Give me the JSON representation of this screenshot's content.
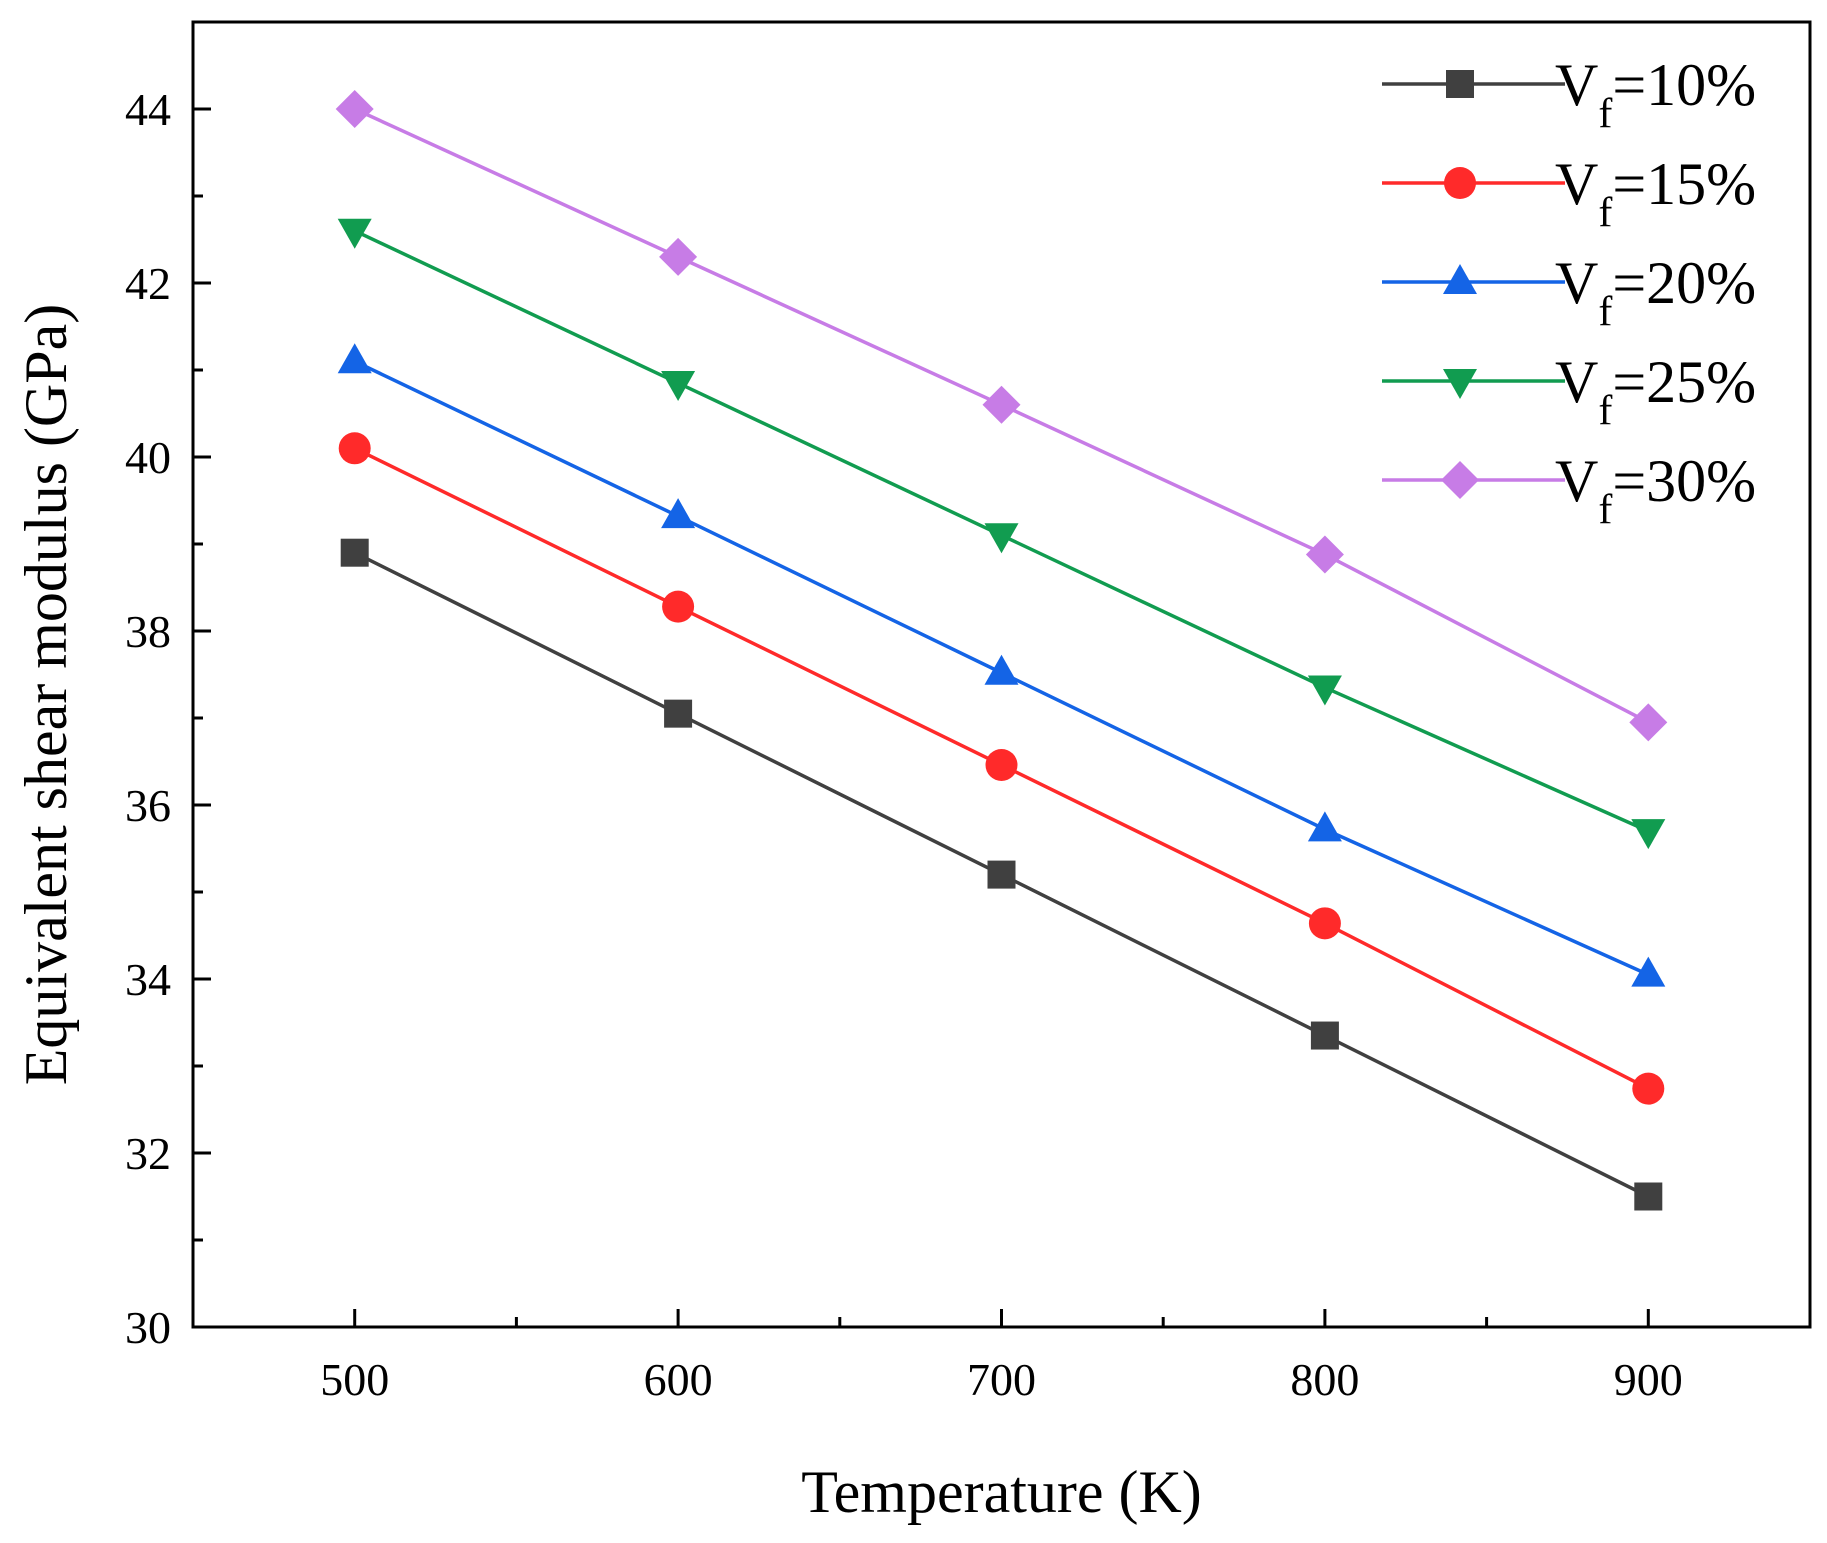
{
  "chart_data": {
    "type": "line",
    "title": "",
    "xlabel": "Temperature (K)",
    "ylabel": "Equivalent shear modulus (GPa)",
    "x": [
      500,
      600,
      700,
      800,
      900
    ],
    "xlim": [
      450,
      950
    ],
    "ylim": [
      30,
      45
    ],
    "xticks": [
      500,
      600,
      700,
      800,
      900
    ],
    "yticks": [
      30,
      32,
      34,
      36,
      38,
      40,
      42,
      44
    ],
    "grid": false,
    "legend_position": "top-right",
    "series": [
      {
        "name": "Vf=10%",
        "legend_main": "V",
        "legend_sub": "f",
        "legend_rest": "=10%",
        "color": "#404040",
        "marker": "square",
        "values": [
          38.9,
          37.05,
          35.2,
          33.35,
          31.5
        ]
      },
      {
        "name": "Vf=15%",
        "legend_main": "V",
        "legend_sub": "f",
        "legend_rest": "=15%",
        "color": "#ff2a2a",
        "marker": "circle",
        "values": [
          40.1,
          38.28,
          36.46,
          34.64,
          32.74
        ]
      },
      {
        "name": "Vf=20%",
        "legend_main": "V",
        "legend_sub": "f",
        "legend_rest": "=20%",
        "color": "#1464e6",
        "marker": "triangle-up",
        "values": [
          41.1,
          39.32,
          37.52,
          35.72,
          34.05
        ]
      },
      {
        "name": "Vf=25%",
        "legend_main": "V",
        "legend_sub": "f",
        "legend_rest": "=25%",
        "color": "#119c50",
        "marker": "triangle-down",
        "values": [
          42.6,
          40.85,
          39.1,
          37.35,
          35.7
        ]
      },
      {
        "name": "Vf=30%",
        "legend_main": "V",
        "legend_sub": "f",
        "legend_rest": "=30%",
        "color": "#c77ce6",
        "marker": "diamond",
        "values": [
          44.0,
          42.3,
          40.6,
          38.88,
          36.95
        ]
      }
    ]
  }
}
